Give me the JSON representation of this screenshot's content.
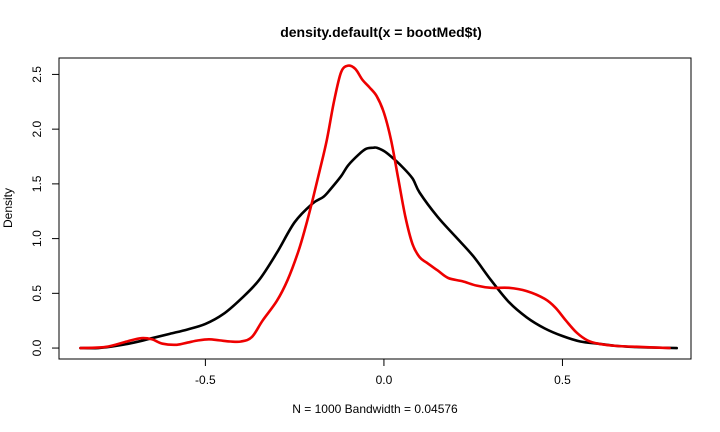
{
  "chart_data": {
    "type": "line",
    "title": "density.default(x = bootMed$t)",
    "xlabel": "N = 1000   Bandwidth = 0.04576",
    "ylabel": "Density",
    "xlim": [
      -0.91,
      0.86
    ],
    "ylim": [
      -0.1,
      2.65
    ],
    "x_ticks": [
      -0.5,
      0.0,
      0.5
    ],
    "x_tick_labels": [
      "-0.5",
      "0.0",
      "0.5"
    ],
    "y_ticks": [
      0.0,
      0.5,
      1.0,
      1.5,
      2.0,
      2.5
    ],
    "y_tick_labels": [
      "0.0",
      "0.5",
      "1.0",
      "1.5",
      "2.0",
      "2.5"
    ],
    "grid": false,
    "series": [
      {
        "color": "#000000",
        "x": [
          -0.85,
          -0.8,
          -0.75,
          -0.7,
          -0.65,
          -0.6,
          -0.55,
          -0.5,
          -0.45,
          -0.4,
          -0.35,
          -0.3,
          -0.25,
          -0.2,
          -0.17,
          -0.15,
          -0.12,
          -0.1,
          -0.07,
          -0.05,
          -0.03,
          -0.02,
          0.0,
          0.02,
          0.05,
          0.08,
          0.1,
          0.15,
          0.2,
          0.25,
          0.3,
          0.35,
          0.4,
          0.45,
          0.5,
          0.55,
          0.6,
          0.65,
          0.7,
          0.75,
          0.82
        ],
        "y": [
          0.0,
          0.0,
          0.02,
          0.05,
          0.09,
          0.13,
          0.17,
          0.22,
          0.31,
          0.45,
          0.62,
          0.87,
          1.15,
          1.32,
          1.38,
          1.45,
          1.57,
          1.67,
          1.77,
          1.82,
          1.83,
          1.83,
          1.8,
          1.75,
          1.66,
          1.55,
          1.42,
          1.2,
          1.02,
          0.84,
          0.62,
          0.42,
          0.28,
          0.18,
          0.11,
          0.06,
          0.04,
          0.02,
          0.01,
          0.005,
          0.0
        ]
      },
      {
        "color": "#ee0000",
        "x": [
          -0.85,
          -0.78,
          -0.72,
          -0.68,
          -0.65,
          -0.62,
          -0.58,
          -0.55,
          -0.52,
          -0.49,
          -0.46,
          -0.43,
          -0.4,
          -0.37,
          -0.34,
          -0.3,
          -0.27,
          -0.24,
          -0.22,
          -0.2,
          -0.18,
          -0.16,
          -0.14,
          -0.12,
          -0.1,
          -0.08,
          -0.06,
          -0.04,
          -0.02,
          0.0,
          0.02,
          0.04,
          0.06,
          0.08,
          0.1,
          0.12,
          0.15,
          0.18,
          0.22,
          0.26,
          0.3,
          0.35,
          0.4,
          0.45,
          0.48,
          0.51,
          0.54,
          0.57,
          0.6,
          0.65,
          0.72,
          0.8
        ],
        "y": [
          0.0,
          0.01,
          0.06,
          0.09,
          0.08,
          0.04,
          0.03,
          0.05,
          0.07,
          0.08,
          0.07,
          0.06,
          0.06,
          0.1,
          0.25,
          0.43,
          0.62,
          0.88,
          1.1,
          1.35,
          1.62,
          1.9,
          2.25,
          2.52,
          2.58,
          2.55,
          2.45,
          2.38,
          2.3,
          2.15,
          1.9,
          1.55,
          1.2,
          0.95,
          0.83,
          0.78,
          0.71,
          0.64,
          0.61,
          0.57,
          0.55,
          0.55,
          0.52,
          0.45,
          0.37,
          0.25,
          0.14,
          0.07,
          0.04,
          0.02,
          0.01,
          0.0
        ]
      }
    ]
  }
}
